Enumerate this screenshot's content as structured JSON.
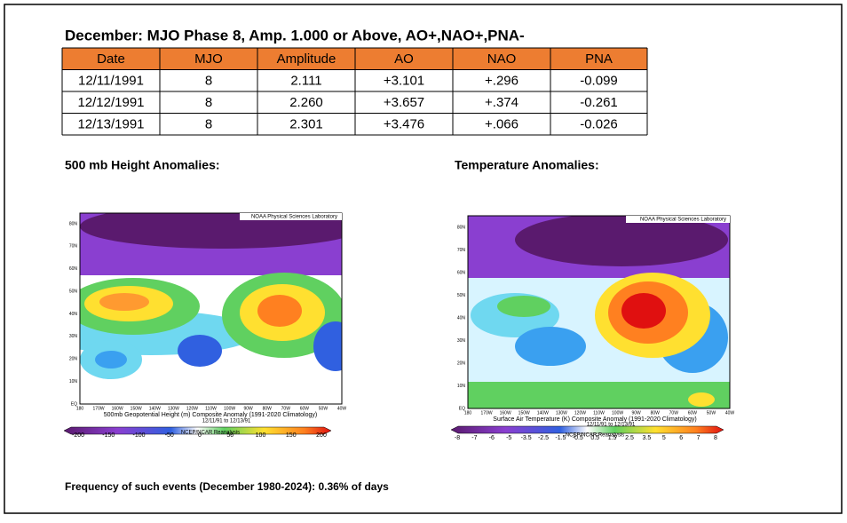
{
  "title": "December: MJO Phase 8, Amp. 1.000 or Above, AO+,NAO+,PNA-",
  "table": {
    "columns": [
      "Date",
      "MJO",
      "Amplitude",
      "AO",
      "NAO",
      "PNA"
    ],
    "rows": [
      [
        "12/11/1991",
        "8",
        "2.111",
        "+3.101",
        "+.296",
        "-0.099"
      ],
      [
        "12/12/1991",
        "8",
        "2.260",
        "+3.657",
        "+.374",
        "-0.261"
      ],
      [
        "12/13/1991",
        "8",
        "2.301",
        "+3.476",
        "+.066",
        "-0.026"
      ]
    ]
  },
  "maps": [
    {
      "heading": "500 mb Height Anomalies:",
      "source": "NOAA Physical Sciences Laboratory",
      "lat_labels": [
        "EQ",
        "10N",
        "20N",
        "30N",
        "40N",
        "50N",
        "60N",
        "70N",
        "80N"
      ],
      "lon_labels": [
        "180",
        "170W",
        "160W",
        "150W",
        "140W",
        "130W",
        "120W",
        "110W",
        "100W",
        "90W",
        "80W",
        "70W",
        "60W",
        "50W",
        "40W"
      ],
      "caption": "500mb Geopotential Height (m) Composite Anomaly (1991-2020 Climatology)",
      "dates": "12/11/91 to 12/13/91",
      "credit": "NCEP/NCAR Reanalysis",
      "colorbar": [
        "-200",
        "-150",
        "-100",
        "-50",
        "0",
        "50",
        "100",
        "150",
        "200"
      ]
    },
    {
      "heading": "Temperature Anomalies:",
      "source": "NOAA Physical Sciences Laboratory",
      "lat_labels": [
        "EQ",
        "10N",
        "20N",
        "30N",
        "40N",
        "50N",
        "60N",
        "70N",
        "80N"
      ],
      "lon_labels": [
        "180",
        "170W",
        "160W",
        "150W",
        "140W",
        "130W",
        "120W",
        "110W",
        "100W",
        "90W",
        "80W",
        "70W",
        "60W",
        "50W",
        "40W"
      ],
      "caption": "Surface Air Temperature (K) Composite Anomaly (1991-2020 Climatology)",
      "dates": "12/11/91 to 12/13/91",
      "credit": "NCEP/NCAR Reanalysis",
      "colorbar": [
        "-8",
        "-7",
        "-6",
        "-5",
        "-3.5",
        "-2.5",
        "-1.5",
        "-0.5",
        "0.5",
        "1.5",
        "2.5",
        "3.5",
        "5",
        "6",
        "7",
        "8"
      ]
    }
  ],
  "footer": "Frequency of such events (December 1980-2024): 0.36% of days"
}
